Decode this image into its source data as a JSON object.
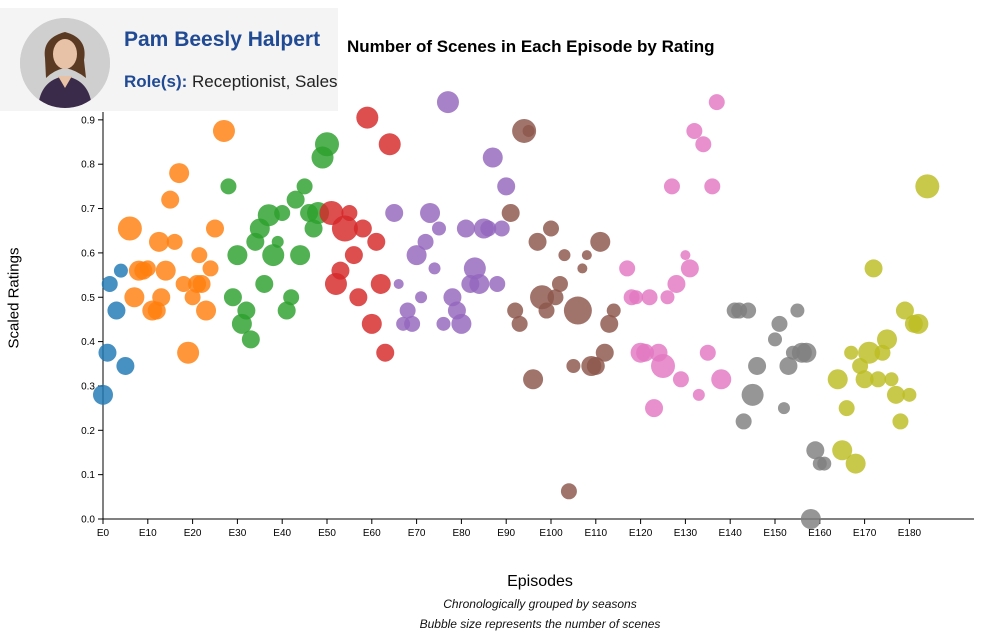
{
  "chart_data": {
    "type": "scatter",
    "title": "Number of Scenes in Each Episode by Rating",
    "xlabel": "Episodes",
    "ylabel": "Scaled Ratings",
    "captions": [
      "Chronologically grouped by seasons",
      "Bubble size represents the number of scenes"
    ],
    "x_ticks": [
      "E0",
      "E10",
      "E20",
      "E30",
      "E40",
      "E50",
      "E60",
      "E70",
      "E80",
      "E90",
      "E100",
      "E110",
      "E120",
      "E130",
      "E140",
      "E150",
      "E160",
      "E170",
      "E180"
    ],
    "y_ticks": [
      "0.0",
      "0.1",
      "0.2",
      "0.3",
      "0.4",
      "0.5",
      "0.6",
      "0.7",
      "0.8",
      "0.9"
    ],
    "xlim": [
      0,
      195
    ],
    "ylim": [
      0,
      1.0
    ],
    "grid": false,
    "seasons": [
      {
        "color": "#1f77b4",
        "points": [
          [
            0,
            0.28,
            10
          ],
          [
            1,
            0.375,
            9
          ],
          [
            1.5,
            0.53,
            8
          ],
          [
            3,
            0.47,
            9
          ],
          [
            4,
            0.56,
            7
          ],
          [
            5,
            0.345,
            9
          ]
        ]
      },
      {
        "color": "#ff7f0e",
        "points": [
          [
            6,
            0.655,
            12
          ],
          [
            7,
            0.5,
            10
          ],
          [
            8,
            0.56,
            10
          ],
          [
            9,
            0.56,
            9
          ],
          [
            10,
            0.565,
            8
          ],
          [
            11,
            0.47,
            10
          ],
          [
            12,
            0.47,
            9
          ],
          [
            12.5,
            0.625,
            10
          ],
          [
            13,
            0.5,
            9
          ],
          [
            14,
            0.56,
            10
          ],
          [
            15,
            0.72,
            9
          ],
          [
            16,
            0.625,
            8
          ],
          [
            17,
            0.78,
            10
          ],
          [
            18,
            0.53,
            8
          ],
          [
            19,
            0.375,
            11
          ],
          [
            20,
            0.5,
            8
          ],
          [
            21,
            0.53,
            9
          ],
          [
            21.5,
            0.595,
            8
          ],
          [
            22,
            0.53,
            9
          ],
          [
            23,
            0.47,
            10
          ],
          [
            24,
            0.565,
            8
          ],
          [
            25,
            0.655,
            9
          ],
          [
            27,
            0.875,
            11
          ]
        ]
      },
      {
        "color": "#2ca02c",
        "points": [
          [
            28,
            0.75,
            8
          ],
          [
            29,
            0.5,
            9
          ],
          [
            30,
            0.595,
            10
          ],
          [
            31,
            0.44,
            10
          ],
          [
            32,
            0.47,
            9
          ],
          [
            33,
            0.405,
            9
          ],
          [
            34,
            0.625,
            9
          ],
          [
            35,
            0.655,
            10
          ],
          [
            36,
            0.53,
            9
          ],
          [
            37,
            0.685,
            11
          ],
          [
            38,
            0.595,
            11
          ],
          [
            39,
            0.625,
            6
          ],
          [
            40,
            0.69,
            8
          ],
          [
            41,
            0.47,
            9
          ],
          [
            42,
            0.5,
            8
          ],
          [
            43,
            0.72,
            9
          ],
          [
            44,
            0.595,
            10
          ],
          [
            45,
            0.75,
            8
          ],
          [
            46,
            0.69,
            9
          ],
          [
            47,
            0.655,
            9
          ],
          [
            48,
            0.69,
            11
          ],
          [
            49,
            0.815,
            11
          ],
          [
            50,
            0.845,
            12
          ]
        ]
      },
      {
        "color": "#d62728",
        "points": [
          [
            51,
            0.69,
            12
          ],
          [
            52,
            0.53,
            11
          ],
          [
            53,
            0.56,
            9
          ],
          [
            54,
            0.655,
            13
          ],
          [
            55,
            0.69,
            8
          ],
          [
            56,
            0.595,
            9
          ],
          [
            57,
            0.5,
            9
          ],
          [
            58,
            0.655,
            9
          ],
          [
            59,
            0.905,
            11
          ],
          [
            60,
            0.44,
            10
          ],
          [
            61,
            0.625,
            9
          ],
          [
            62,
            0.53,
            10
          ],
          [
            63,
            0.375,
            9
          ],
          [
            64,
            0.845,
            11
          ]
        ]
      },
      {
        "color": "#9467bd",
        "points": [
          [
            65,
            0.69,
            9
          ],
          [
            66,
            0.53,
            5
          ],
          [
            67,
            0.44,
            7
          ],
          [
            68,
            0.47,
            8
          ],
          [
            69,
            0.44,
            8
          ],
          [
            70,
            0.595,
            10
          ],
          [
            71,
            0.5,
            6
          ],
          [
            72,
            0.625,
            8
          ],
          [
            73,
            0.69,
            10
          ],
          [
            74,
            0.565,
            6
          ],
          [
            75,
            0.655,
            7
          ],
          [
            76,
            0.44,
            7
          ],
          [
            77,
            0.94,
            11
          ],
          [
            78,
            0.5,
            9
          ],
          [
            79,
            0.47,
            9
          ],
          [
            80,
            0.44,
            10
          ],
          [
            81,
            0.655,
            9
          ],
          [
            82,
            0.53,
            9
          ],
          [
            83,
            0.565,
            11
          ],
          [
            84,
            0.53,
            10
          ],
          [
            85,
            0.655,
            10
          ],
          [
            86,
            0.655,
            8
          ],
          [
            87,
            0.815,
            10
          ],
          [
            88,
            0.53,
            8
          ],
          [
            89,
            0.655,
            8
          ],
          [
            90,
            0.75,
            9
          ]
        ]
      },
      {
        "color": "#8c564b",
        "points": [
          [
            91,
            0.69,
            9
          ],
          [
            92,
            0.47,
            8
          ],
          [
            93,
            0.44,
            8
          ],
          [
            94,
            0.875,
            12
          ],
          [
            95,
            0.875,
            6
          ],
          [
            96,
            0.315,
            10
          ],
          [
            97,
            0.625,
            9
          ],
          [
            98,
            0.5,
            12
          ],
          [
            99,
            0.47,
            8
          ],
          [
            100,
            0.655,
            8
          ],
          [
            101,
            0.5,
            8
          ],
          [
            102,
            0.53,
            8
          ],
          [
            103,
            0.595,
            6
          ],
          [
            104,
            0.0625,
            8
          ],
          [
            105,
            0.345,
            7
          ],
          [
            106,
            0.47,
            14
          ],
          [
            107,
            0.565,
            5
          ],
          [
            108,
            0.595,
            5
          ],
          [
            109,
            0.345,
            10
          ],
          [
            110,
            0.345,
            9
          ],
          [
            111,
            0.625,
            10
          ],
          [
            112,
            0.375,
            9
          ],
          [
            113,
            0.44,
            9
          ],
          [
            114,
            0.47,
            7
          ]
        ]
      },
      {
        "color": "#e377c2",
        "points": [
          [
            117,
            0.565,
            8
          ],
          [
            118,
            0.5,
            8
          ],
          [
            119,
            0.5,
            7
          ],
          [
            120,
            0.375,
            10
          ],
          [
            121,
            0.375,
            9
          ],
          [
            122,
            0.5,
            8
          ],
          [
            123,
            0.25,
            9
          ],
          [
            124,
            0.375,
            9
          ],
          [
            125,
            0.345,
            12
          ],
          [
            126,
            0.5,
            7
          ],
          [
            127,
            0.75,
            8
          ],
          [
            128,
            0.53,
            9
          ],
          [
            129,
            0.315,
            8
          ],
          [
            130,
            0.595,
            5
          ],
          [
            131,
            0.565,
            9
          ],
          [
            132,
            0.875,
            8
          ],
          [
            133,
            0.28,
            6
          ],
          [
            134,
            0.845,
            8
          ],
          [
            135,
            0.375,
            8
          ],
          [
            136,
            0.75,
            8
          ],
          [
            137,
            0.94,
            8
          ],
          [
            138,
            0.315,
            10
          ]
        ]
      },
      {
        "color": "#7f7f7f",
        "points": [
          [
            141,
            0.47,
            8
          ],
          [
            142,
            0.47,
            8
          ],
          [
            143,
            0.22,
            8
          ],
          [
            144,
            0.47,
            8
          ],
          [
            145,
            0.28,
            11
          ],
          [
            146,
            0.345,
            9
          ],
          [
            150,
            0.405,
            7
          ],
          [
            151,
            0.44,
            8
          ],
          [
            152,
            0.25,
            6
          ],
          [
            153,
            0.345,
            9
          ],
          [
            154,
            0.375,
            7
          ],
          [
            155,
            0.47,
            7
          ],
          [
            156,
            0.375,
            10
          ],
          [
            157,
            0.375,
            10
          ],
          [
            158,
            0.0,
            10
          ],
          [
            159,
            0.155,
            9
          ],
          [
            160,
            0.125,
            7
          ],
          [
            161,
            0.125,
            7
          ]
        ]
      },
      {
        "color": "#bcbd22",
        "points": [
          [
            164,
            0.315,
            10
          ],
          [
            165,
            0.155,
            10
          ],
          [
            166,
            0.25,
            8
          ],
          [
            167,
            0.375,
            7
          ],
          [
            168,
            0.125,
            10
          ],
          [
            169,
            0.345,
            8
          ],
          [
            170,
            0.315,
            9
          ],
          [
            171,
            0.375,
            11
          ],
          [
            172,
            0.565,
            9
          ],
          [
            173,
            0.315,
            8
          ],
          [
            174,
            0.375,
            8
          ],
          [
            175,
            0.405,
            10
          ],
          [
            176,
            0.315,
            7
          ],
          [
            177,
            0.28,
            9
          ],
          [
            178,
            0.22,
            8
          ],
          [
            179,
            0.47,
            9
          ],
          [
            180,
            0.28,
            7
          ],
          [
            181,
            0.44,
            9
          ],
          [
            182,
            0.44,
            10
          ],
          [
            184,
            0.75,
            12
          ]
        ]
      }
    ]
  },
  "tooltip": {
    "name": "Pam Beesly Halpert",
    "role_label": "Role(s):",
    "roles": "Receptionist, Sales"
  }
}
